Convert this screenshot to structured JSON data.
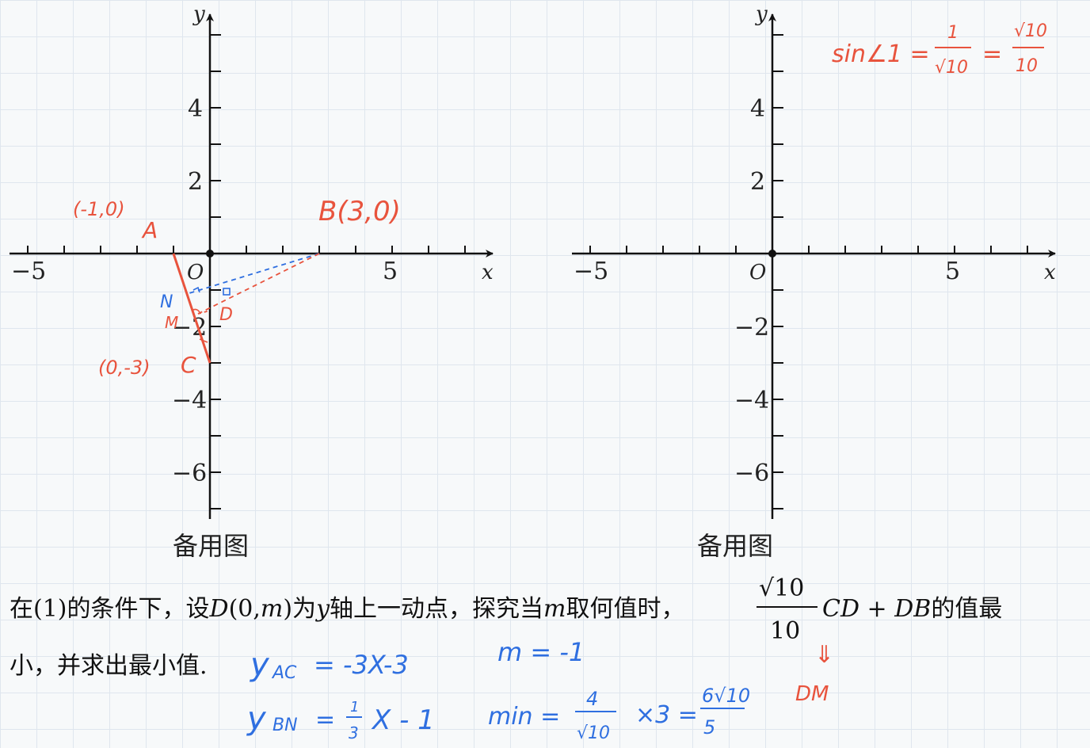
{
  "left_graph": {
    "x_ticks": [
      "−5",
      "5"
    ],
    "y_ticks": [
      "4",
      "2",
      "−2",
      "−4",
      "−6"
    ],
    "origin": "O",
    "x_axis_name": "x",
    "y_axis_name": "y",
    "caption": "备用图"
  },
  "right_graph": {
    "x_ticks": [
      "−5",
      "5"
    ],
    "y_ticks": [
      "4",
      "2",
      "−2",
      "−4",
      "−6"
    ],
    "origin": "O",
    "x_axis_name": "x",
    "y_axis_name": "y",
    "caption": "备用图"
  },
  "annotations": {
    "point_a_coord": "(-1,0)",
    "point_a_label": "A",
    "point_b_label": "B(3,0)",
    "point_c_coord": "(0,-3)",
    "point_c_label": "C",
    "point_n_label": "N",
    "point_m_label": "M",
    "point_d_label": "D",
    "sin_eq_left": "sin∠1 =",
    "sin_num1": "1",
    "sin_den1": "√10",
    "sin_eq_mid": "=",
    "sin_num2": "√10",
    "sin_den2": "10",
    "arrow_label": "⇓",
    "dm_label": "DM"
  },
  "problem": {
    "part1": "在(1)的条件下，设",
    "var_d": "D",
    "part2": "(0,",
    "var_m": "m",
    "part3": ")为",
    "var_y": "y",
    "part4": "轴上一动点，探究当",
    "var_m2": "m",
    "part5": "取何值时，",
    "frac_num": "√10",
    "frac_den": "10",
    "expr": "CD + DB",
    "part6": "的值最",
    "line2": "小，并求出最小值."
  },
  "work": {
    "y_ac": "y",
    "y_ac_sub": "AC",
    "y_ac_rhs": "= -3X-3",
    "y_bn": "y",
    "y_bn_sub": "BN",
    "y_bn_eq": "=",
    "y_bn_num": "1",
    "y_bn_den": "3",
    "y_bn_rhs": "X - 1",
    "m_value": "m = -1",
    "min_label": "min =",
    "min_num": "4",
    "min_den": "√10",
    "min_times": "×3 =",
    "min_res_num": "6√10",
    "min_res_den": "5"
  }
}
